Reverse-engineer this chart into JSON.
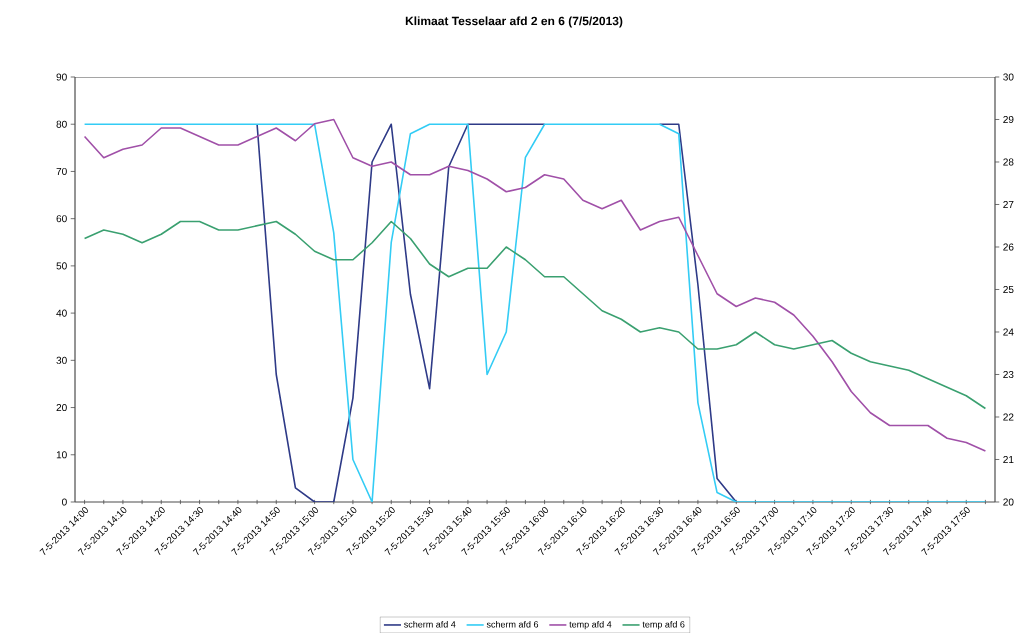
{
  "chart_data": {
    "type": "line",
    "title": "Klimaat Tesselaar afd 2 en 6 (7/5/2013)",
    "categories": [
      "7-5-2013 14:00",
      null,
      "7-5-2013 14:10",
      null,
      "7-5-2013 14:20",
      null,
      "7-5-2013 14:30",
      null,
      "7-5-2013 14:40",
      null,
      "7-5-2013 14:50",
      null,
      "7-5-2013 15:00",
      null,
      "7-5-2013 15:10",
      null,
      "7-5-2013 15:20",
      null,
      "7-5-2013 15:30",
      null,
      "7-5-2013 15:40",
      null,
      "7-5-2013 15:50",
      null,
      "7-5-2013 16:00",
      null,
      "7-5-2013 16:10",
      null,
      "7-5-2013 16:20",
      null,
      "7-5-2013 16:30",
      null,
      "7-5-2013 16:40",
      null,
      "7-5-2013 16:50",
      null,
      "7-5-2013 17:00",
      null,
      "7-5-2013 17:10",
      null,
      "7-5-2013 17:20",
      null,
      "7-5-2013 17:30",
      null,
      "7-5-2013 17:40",
      null,
      "7-5-2013 17:50",
      null
    ],
    "series": [
      {
        "name": "scherm afd 4",
        "color": "#2e3a87",
        "values": [
          null,
          null,
          null,
          null,
          null,
          null,
          null,
          null,
          null,
          80,
          27,
          3,
          0,
          0,
          22,
          72,
          80,
          44,
          24,
          71,
          80,
          80,
          80,
          80,
          80,
          null,
          null,
          null,
          null,
          null,
          80,
          80,
          46,
          5,
          0,
          null,
          null,
          null,
          null,
          null,
          null,
          null,
          null,
          null,
          null,
          null,
          null,
          null
        ]
      },
      {
        "name": "scherm afd 6",
        "color": "#33ccf5",
        "values": [
          80,
          80,
          80,
          80,
          80,
          80,
          80,
          80,
          80,
          80,
          80,
          80,
          80,
          57,
          9,
          0,
          55,
          78,
          80,
          80,
          80,
          27,
          36,
          73,
          80,
          80,
          80,
          80,
          80,
          80,
          80,
          78,
          21,
          2,
          0,
          0,
          0,
          0,
          0,
          0,
          0,
          0,
          0,
          0,
          0,
          0,
          0,
          0
        ]
      },
      {
        "name": "temp afd 4",
        "color": "#a050a8",
        "axis": "y2",
        "values": [
          28.6,
          28.1,
          28.3,
          28.4,
          28.8,
          28.8,
          28.6,
          28.4,
          28.4,
          28.6,
          28.8,
          28.5,
          28.9,
          29.0,
          28.1,
          27.9,
          28.0,
          27.7,
          27.7,
          27.9,
          27.8,
          27.6,
          27.3,
          27.4,
          27.7,
          27.6,
          27.1,
          26.9,
          27.1,
          26.4,
          26.6,
          26.7,
          25.8,
          24.9,
          24.6,
          24.8,
          24.7,
          24.4,
          23.9,
          23.3,
          22.6,
          22.1,
          21.8,
          21.8,
          21.8,
          21.5,
          21.4,
          21.2
        ]
      },
      {
        "name": "temp afd 6",
        "color": "#3aa070",
        "axis": "y2",
        "values": [
          26.2,
          26.4,
          26.3,
          26.1,
          26.3,
          26.6,
          26.6,
          26.4,
          26.4,
          26.5,
          26.6,
          26.3,
          25.9,
          25.7,
          25.7,
          26.1,
          26.6,
          26.2,
          25.6,
          25.3,
          25.5,
          25.5,
          26.0,
          25.7,
          25.3,
          25.3,
          24.9,
          24.5,
          24.3,
          24.0,
          24.1,
          24.0,
          23.6,
          23.6,
          23.7,
          24.0,
          23.7,
          23.6,
          23.7,
          23.8,
          23.5,
          23.3,
          23.2,
          23.1,
          22.9,
          22.7,
          22.5,
          22.2
        ]
      }
    ],
    "ylim": [
      0,
      90
    ],
    "yticks": [
      0,
      10,
      20,
      30,
      40,
      50,
      60,
      70,
      80,
      90
    ],
    "y2lim": [
      20,
      30
    ],
    "y2ticks": [
      20,
      21,
      22,
      23,
      24,
      25,
      26,
      27,
      28,
      29,
      30
    ],
    "legend": "bottom",
    "marker": "none",
    "line_style": "solid",
    "grid": false
  }
}
